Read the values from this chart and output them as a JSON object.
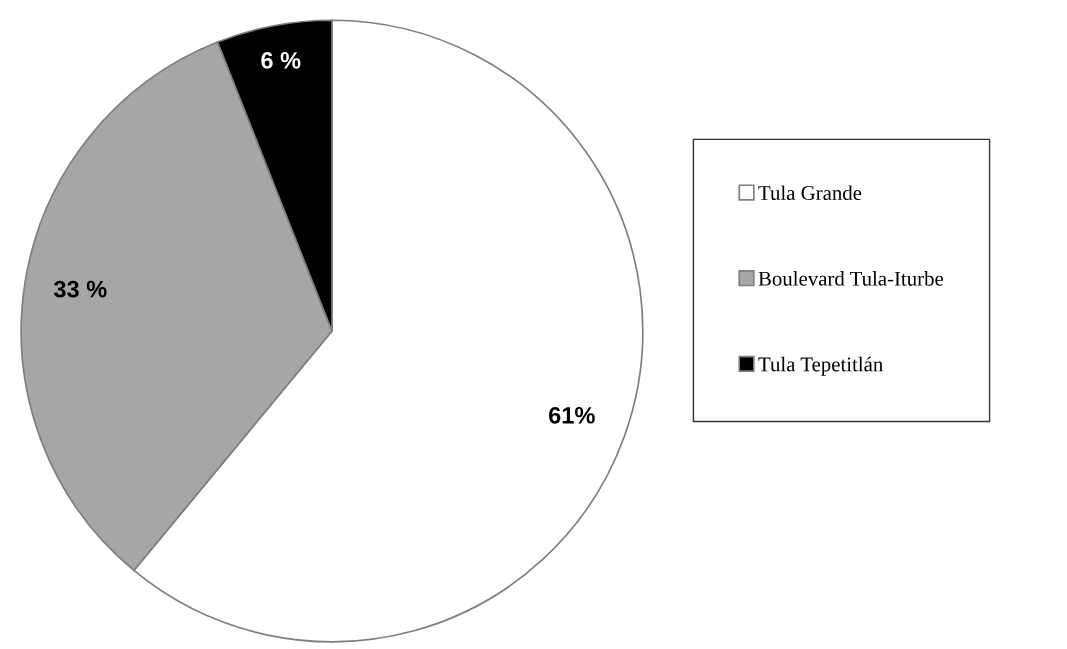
{
  "chart_data": {
    "type": "pie",
    "categories": [
      "Tula Grande",
      "Boulevard Tula-Iturbe",
      "Tula Tepetitlán"
    ],
    "values": [
      61,
      33,
      6
    ],
    "colors": [
      "#ffffff",
      "#a6a6a6",
      "#000000"
    ],
    "value_labels": [
      "61%",
      "33 %",
      "6 %"
    ],
    "legend": "right"
  }
}
